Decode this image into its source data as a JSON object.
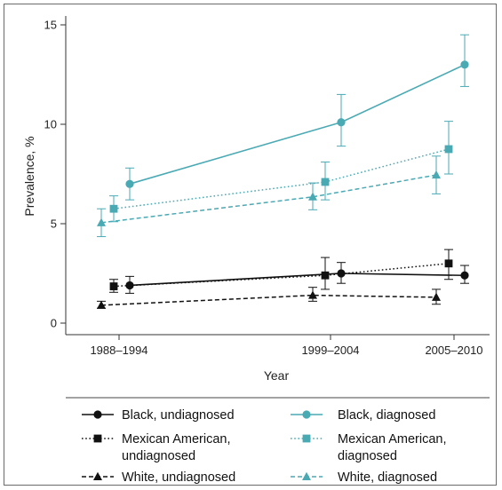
{
  "chart_data": {
    "type": "line",
    "xlabel": "Year",
    "ylabel": "Prevalence, %",
    "categories": [
      "1988–1994",
      "1999–2004",
      "2005–2010"
    ],
    "ylim": [
      0,
      15
    ],
    "yticks": [
      "0",
      "5",
      "10",
      "15"
    ],
    "grid": false,
    "legend_position": "bottom",
    "series": [
      {
        "key": "black_undx",
        "name": "Black, undiagnosed",
        "color": "#111111",
        "dash": "solid",
        "marker": "circle",
        "values": [
          1.9,
          2.5,
          2.4
        ],
        "error_low": [
          1.5,
          2.0,
          2.0
        ],
        "error_high": [
          2.35,
          3.05,
          2.9
        ]
      },
      {
        "key": "black_dx",
        "name": "Black, diagnosed",
        "color": "#4aaab4",
        "dash": "solid",
        "marker": "circle",
        "values": [
          7.0,
          10.1,
          13.0
        ],
        "error_low": [
          6.2,
          8.9,
          11.9
        ],
        "error_high": [
          7.8,
          11.5,
          14.5
        ]
      },
      {
        "key": "mex_undx",
        "name": "Mexican American, undiagnosed",
        "color": "#111111",
        "dash": "dotted",
        "marker": "square",
        "values": [
          1.85,
          2.4,
          3.0
        ],
        "error_low": [
          1.55,
          1.7,
          2.2
        ],
        "error_high": [
          2.2,
          3.3,
          3.7
        ]
      },
      {
        "key": "mex_dx",
        "name": "Mexican American, diagnosed",
        "color": "#4aaab4",
        "dash": "dotted",
        "marker": "square",
        "values": [
          5.75,
          7.1,
          8.75
        ],
        "error_low": [
          5.1,
          6.2,
          7.5
        ],
        "error_high": [
          6.4,
          8.1,
          10.15
        ]
      },
      {
        "key": "white_undx",
        "name": "White, undiagnosed",
        "color": "#111111",
        "dash": "dashed",
        "marker": "triangle",
        "values": [
          0.9,
          1.4,
          1.3
        ],
        "error_low": [
          0.75,
          1.1,
          0.95
        ],
        "error_high": [
          1.1,
          1.8,
          1.7
        ]
      },
      {
        "key": "white_dx",
        "name": "White, diagnosed",
        "color": "#4aaab4",
        "dash": "dashed",
        "marker": "triangle",
        "values": [
          5.05,
          6.35,
          7.45
        ],
        "error_low": [
          4.35,
          5.7,
          6.5
        ],
        "error_high": [
          5.75,
          7.05,
          8.4
        ]
      }
    ],
    "legend": {
      "rows": [
        [
          {
            "series": "black_undx",
            "lines": [
              "Black, undiagnosed"
            ]
          },
          {
            "series": "black_dx",
            "lines": [
              "Black, diagnosed"
            ]
          }
        ],
        [
          {
            "series": "mex_undx",
            "lines": [
              "Mexican American,",
              "undiagnosed"
            ]
          },
          {
            "series": "mex_dx",
            "lines": [
              "Mexican American,",
              "diagnosed"
            ]
          }
        ],
        [
          {
            "series": "white_undx",
            "lines": [
              "White, undiagnosed"
            ]
          },
          {
            "series": "white_dx",
            "lines": [
              "White, diagnosed"
            ]
          }
        ]
      ]
    }
  }
}
